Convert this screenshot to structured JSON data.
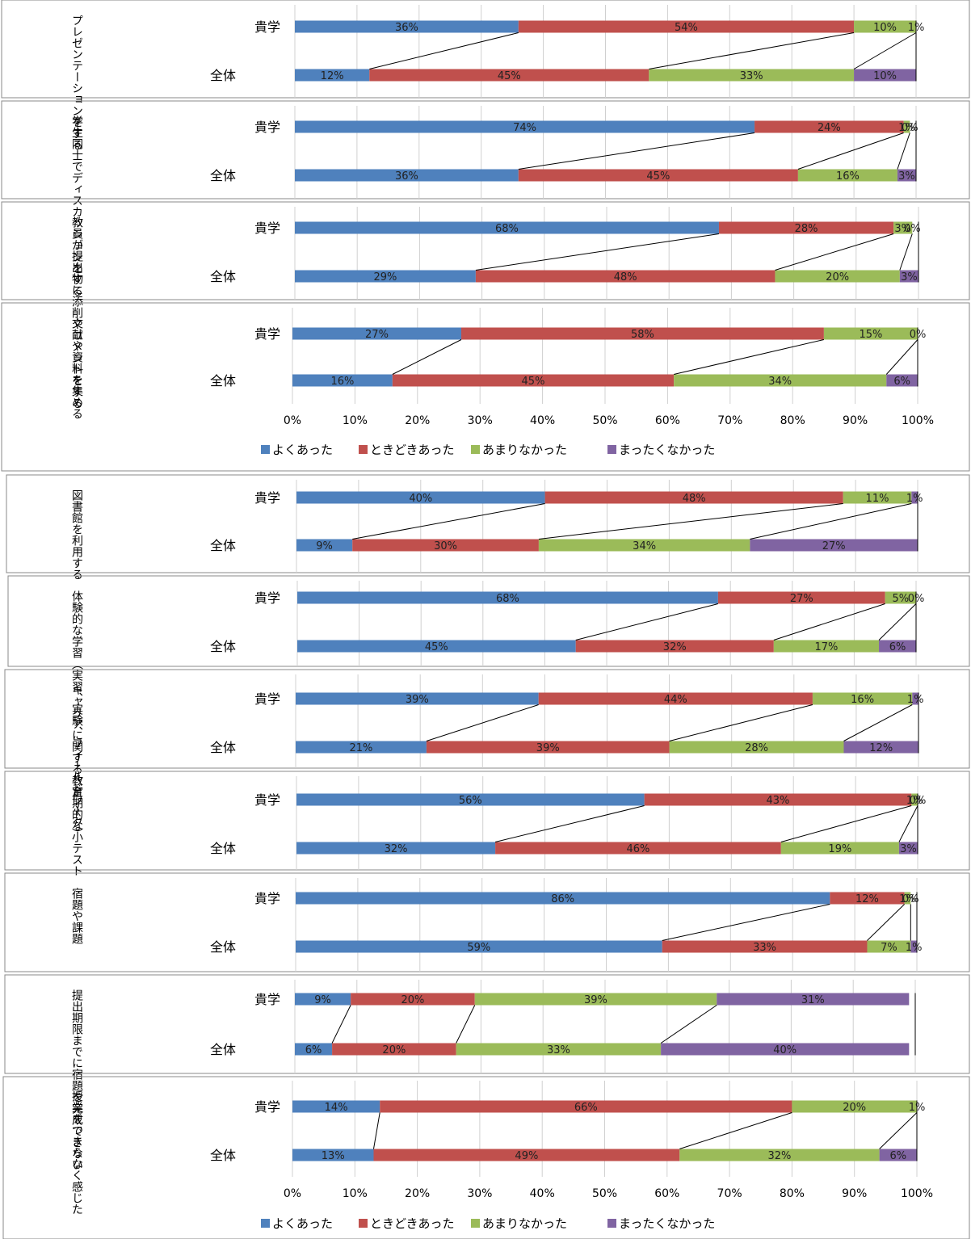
{
  "chart_data": {
    "type": "bar",
    "orientation": "horizontal",
    "stacked": "percent",
    "row_labels": [
      "貴学",
      "全体"
    ],
    "legend": [
      "よくあった",
      "ときどきあった",
      "あまりなかった",
      "まったくなかった"
    ],
    "xticks": [
      "0%",
      "10%",
      "20%",
      "30%",
      "40%",
      "50%",
      "60%",
      "70%",
      "80%",
      "90%",
      "100%"
    ],
    "xlim": [
      0,
      100
    ],
    "grid": true,
    "colors": [
      "#4f81bd",
      "#c0504d",
      "#9bbb59",
      "#8064a2"
    ],
    "panels": [
      {
        "category": "プレゼンテーションをする",
        "values": {
          "貴学": [
            36,
            54,
            10,
            1
          ],
          "全体": [
            12,
            45,
            33,
            10
          ]
        },
        "labels": {
          "貴学": [
            "36%",
            "54%",
            "10%",
            "1%"
          ],
          "全体": [
            "12%",
            "45%",
            "33%",
            "10%"
          ]
        }
      },
      {
        "category": "学生同士でディスカッションをする",
        "values": {
          "貴学": [
            74,
            24,
            1,
            0
          ],
          "全体": [
            36,
            45,
            16,
            3
          ]
        },
        "labels": {
          "貴学": [
            "74%",
            "24%",
            "1%",
            "0%"
          ],
          "全体": [
            "36%",
            "45%",
            "16%",
            "3%"
          ]
        }
      },
      {
        "category": "教員が提出物に添削やコメントをする",
        "values": {
          "貴学": [
            68,
            28,
            3,
            0
          ],
          "全体": [
            29,
            48,
            20,
            3
          ]
        },
        "labels": {
          "貴学": [
            "68%",
            "28%",
            "3%",
            "0%"
          ],
          "全体": [
            "29%",
            "48%",
            "20%",
            "3%"
          ]
        }
      },
      {
        "category": "文献や資料を集める",
        "values": {
          "貴学": [
            27,
            58,
            15,
            0
          ],
          "全体": [
            16,
            45,
            34,
            6
          ]
        },
        "labels": {
          "貴学": [
            "27%",
            "58%",
            "15%",
            "0%"
          ],
          "全体": [
            "16%",
            "45%",
            "34%",
            "6%"
          ]
        }
      },
      {
        "category": "図書館を利用する",
        "values": {
          "貴学": [
            40,
            48,
            11,
            1
          ],
          "全体": [
            9,
            30,
            34,
            27
          ]
        },
        "labels": {
          "貴学": [
            "40%",
            "48%",
            "11%",
            "1%"
          ],
          "全体": [
            "9%",
            "30%",
            "34%",
            "27%"
          ]
        }
      },
      {
        "category": "体験的な学習（実習、実験、フィールドワーク）",
        "values": {
          "貴学": [
            68,
            27,
            5,
            0
          ],
          "全体": [
            45,
            32,
            17,
            6
          ]
        },
        "labels": {
          "貴学": [
            "68%",
            "27%",
            "5%",
            "0%"
          ],
          "全体": [
            "45%",
            "32%",
            "17%",
            "6%"
          ]
        }
      },
      {
        "category": "キャリアに関する教育",
        "values": {
          "貴学": [
            39,
            44,
            16,
            1
          ],
          "全体": [
            21,
            39,
            28,
            12
          ]
        },
        "labels": {
          "貴学": [
            "39%",
            "44%",
            "16%",
            "1%"
          ],
          "全体": [
            "21%",
            "39%",
            "28%",
            "12%"
          ]
        }
      },
      {
        "category": "定期的な小テスト",
        "values": {
          "貴学": [
            56,
            43,
            1,
            0
          ],
          "全体": [
            32,
            46,
            19,
            3
          ]
        },
        "labels": {
          "貴学": [
            "56%",
            "43%",
            "1%",
            "0%"
          ],
          "全体": [
            "32%",
            "46%",
            "19%",
            "3%"
          ]
        }
      },
      {
        "category": "宿題や課題",
        "values": {
          "貴学": [
            86,
            12,
            1,
            0
          ],
          "全体": [
            59,
            33,
            7,
            1
          ]
        },
        "labels": {
          "貴学": [
            "86%",
            "12%",
            "1%",
            "0%"
          ],
          "全体": [
            "59%",
            "33%",
            "7%",
            "1%"
          ]
        }
      },
      {
        "category": "提出期限までに宿題を完成できない",
        "values": {
          "貴学": [
            9,
            20,
            39,
            31
          ],
          "全体": [
            6,
            20,
            33,
            40
          ]
        },
        "labels": {
          "貴学": [
            "9%",
            "20%",
            "39%",
            "31%"
          ],
          "全体": [
            "6%",
            "20%",
            "33%",
            "40%"
          ]
        }
      },
      {
        "category": "授業をつまらなく感じた",
        "values": {
          "貴学": [
            14,
            66,
            20,
            1
          ],
          "全体": [
            13,
            49,
            32,
            6
          ]
        },
        "labels": {
          "貴学": [
            "14%",
            "66%",
            "20%",
            "1%"
          ],
          "全体": [
            "13%",
            "49%",
            "32%",
            "6%"
          ]
        }
      }
    ]
  }
}
